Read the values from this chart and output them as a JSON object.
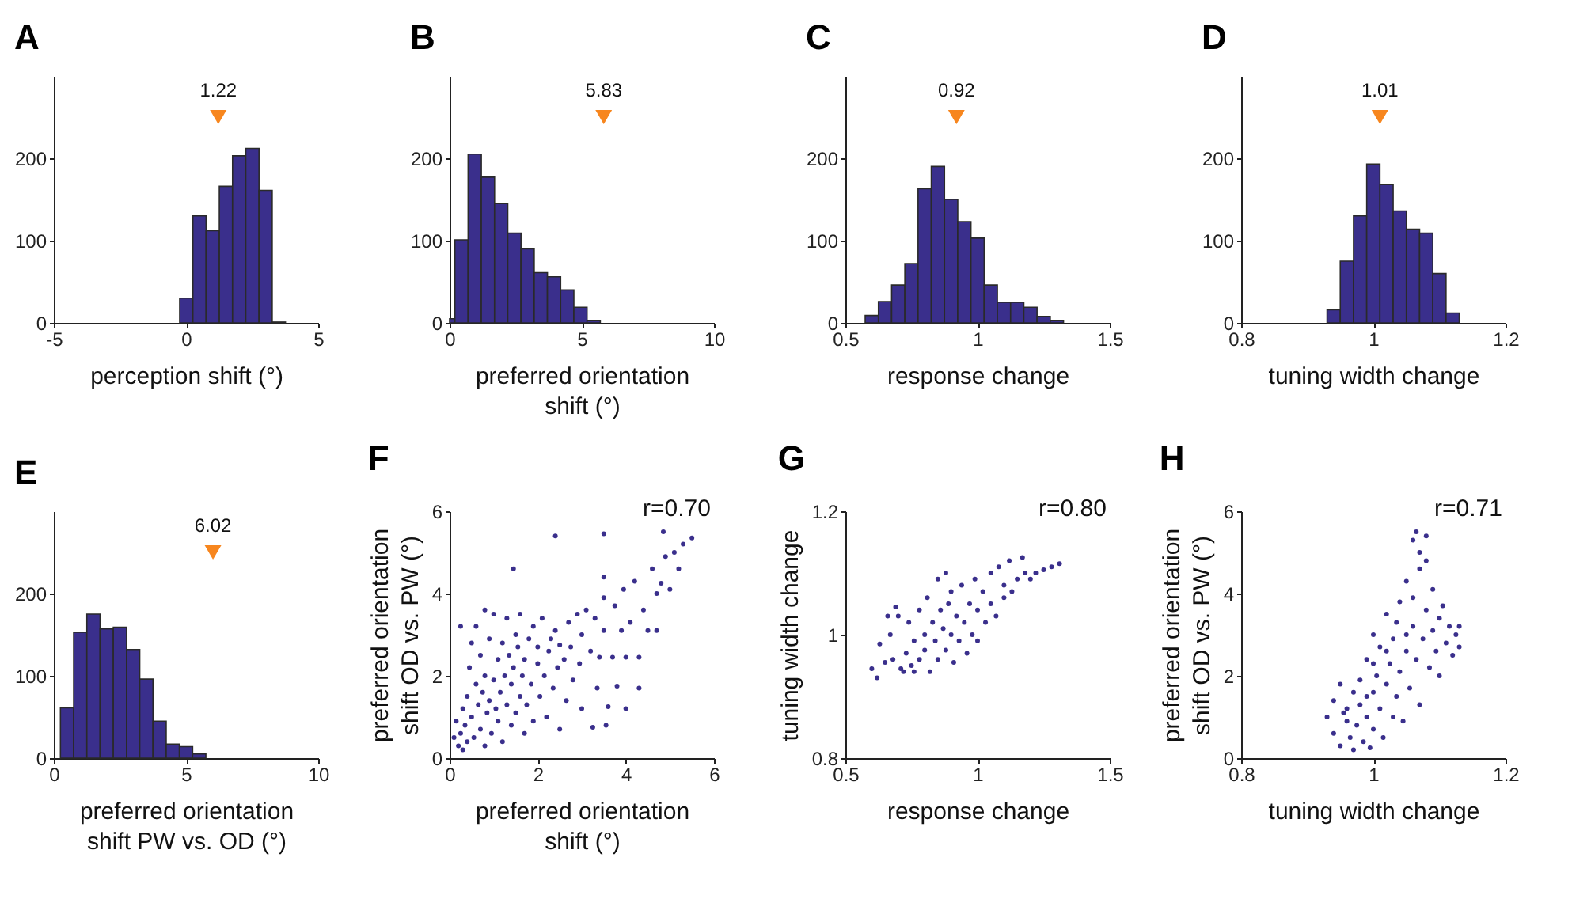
{
  "chart_data": [
    {
      "type": "histogram",
      "title": "A",
      "xlabel": "perception shift (°)",
      "color": "#3a2f8c",
      "xlim": [
        -5,
        5
      ],
      "xticks": [
        -5,
        0,
        5
      ],
      "ylim": [
        0,
        300
      ],
      "yticks": [
        0,
        100,
        200
      ],
      "bins": [
        -0.24,
        0.26,
        0.76,
        1.26,
        1.76,
        2.26,
        2.76,
        3.26,
        3.76
      ],
      "values": [
        30,
        130,
        112,
        166,
        203,
        212,
        161,
        1
      ],
      "annotations": [
        {
          "text": "1.22",
          "x": 1.22,
          "y": 250
        }
      ]
    },
    {
      "type": "histogram",
      "title": "B",
      "xlabel": "preferred orientation\nshift (°)",
      "color": "#3a2f8c",
      "xlim": [
        0,
        10
      ],
      "xticks": [
        0,
        5,
        10
      ],
      "ylim": [
        0,
        300
      ],
      "yticks": [
        0,
        100,
        200
      ],
      "bins": [
        0,
        0.2,
        0.7,
        1.2,
        1.7,
        2.2,
        2.7,
        3.2,
        3.7,
        4.2,
        4.7,
        5.2,
        5.7
      ],
      "values": [
        5,
        101,
        205,
        177,
        145,
        109,
        90,
        61,
        56,
        40,
        19,
        3
      ],
      "annotations": [
        {
          "text": "5.83",
          "x": 5.83,
          "y": 250
        }
      ]
    },
    {
      "type": "histogram",
      "title": "C",
      "xlabel": "response change",
      "color": "#3a2f8c",
      "xlim": [
        0.5,
        1.5
      ],
      "xticks": [
        0.5,
        1,
        1.5
      ],
      "ylim": [
        0,
        300
      ],
      "yticks": [
        0,
        100,
        200
      ],
      "bins": [
        0.575,
        0.625,
        0.675,
        0.725,
        0.775,
        0.825,
        0.875,
        0.925,
        0.975,
        1.025,
        1.075,
        1.125,
        1.175,
        1.225,
        1.275,
        1.325
      ],
      "values": [
        9,
        26,
        46,
        72,
        163,
        190,
        150,
        123,
        103,
        46,
        25,
        25,
        19,
        8,
        3
      ],
      "annotations": [
        {
          "text": "0.92",
          "x": 0.92,
          "y": 250
        }
      ]
    },
    {
      "type": "histogram",
      "title": "D",
      "xlabel": "tuning width change",
      "color": "#3a2f8c",
      "xlim": [
        0.8,
        1.2
      ],
      "xticks": [
        0.8,
        1,
        1.2
      ],
      "ylim": [
        0,
        300
      ],
      "yticks": [
        0,
        100,
        200
      ],
      "bins": [
        0.93,
        0.95,
        0.97,
        0.99,
        1.01,
        1.03,
        1.05,
        1.07,
        1.09,
        1.11,
        1.13
      ],
      "values": [
        16,
        75,
        130,
        193,
        168,
        136,
        114,
        109,
        60,
        12
      ],
      "annotations": [
        {
          "text": "1.01",
          "x": 1.01,
          "y": 250
        }
      ]
    },
    {
      "type": "histogram",
      "title": "E",
      "xlabel": "preferred orientation\nshift PW vs. OD (°)",
      "color": "#3a2f8c",
      "xlim": [
        0,
        10
      ],
      "xticks": [
        0,
        5,
        10
      ],
      "ylim": [
        0,
        300
      ],
      "yticks": [
        0,
        100,
        200
      ],
      "bins": [
        0.25,
        0.75,
        1.25,
        1.75,
        2.25,
        2.75,
        3.25,
        3.75,
        4.25,
        4.75,
        5.25,
        5.75
      ],
      "values": [
        61,
        153,
        175,
        157,
        159,
        132,
        96,
        45,
        17,
        14,
        5
      ],
      "annotations": [
        {
          "text": "6.02",
          "x": 6.02,
          "y": 250
        }
      ]
    },
    {
      "type": "scatter",
      "title": "F",
      "xlabel": "preferred orientation\nshift (°)",
      "ylabel": "preferred orientation\nshift OD vs. PW (°)",
      "color": "#3a2f8c",
      "marker": "circle",
      "xlim": [
        0,
        6
      ],
      "xticks": [
        0,
        2,
        4,
        6
      ],
      "ylim": [
        0,
        6
      ],
      "yticks": [
        0,
        2,
        4,
        6
      ],
      "annotations": [
        "r=0.70"
      ],
      "x": [
        0.1,
        0.15,
        0.2,
        0.25,
        0.3,
        0.3,
        0.35,
        0.4,
        0.4,
        0.45,
        0.5,
        0.5,
        0.55,
        0.6,
        0.6,
        0.65,
        0.7,
        0.7,
        0.75,
        0.8,
        0.8,
        0.85,
        0.9,
        0.9,
        0.95,
        1.0,
        1.0,
        1.05,
        1.1,
        1.1,
        1.15,
        1.2,
        1.2,
        1.25,
        1.3,
        1.3,
        1.35,
        1.4,
        1.4,
        1.45,
        1.5,
        1.5,
        1.55,
        1.6,
        1.6,
        1.65,
        1.7,
        1.7,
        1.75,
        1.8,
        1.85,
        1.9,
        1.9,
        2.0,
        2.0,
        2.05,
        2.1,
        2.15,
        2.2,
        2.25,
        2.3,
        2.35,
        2.4,
        2.45,
        2.5,
        2.5,
        2.6,
        2.65,
        2.7,
        2.75,
        2.8,
        2.9,
        2.95,
        3.0,
        3.0,
        3.1,
        3.2,
        3.25,
        3.3,
        3.35,
        3.4,
        3.5,
        3.5,
        3.55,
        3.6,
        3.7,
        3.75,
        3.8,
        3.9,
        3.95,
        4.0,
        4.0,
        4.1,
        4.2,
        4.3,
        4.3,
        4.4,
        4.5,
        4.6,
        4.7,
        4.7,
        4.8,
        4.9,
        5.0,
        5.1,
        5.2,
        5.3,
        5.5,
        2.4,
        3.5,
        1.45,
        4.85,
        3.5,
        0.25,
        0.8
      ],
      "values": [
        0.5,
        0.9,
        0.3,
        0.6,
        1.2,
        0.2,
        0.8,
        1.5,
        0.4,
        2.2,
        1.0,
        2.8,
        0.5,
        1.8,
        3.2,
        1.3,
        0.7,
        2.5,
        1.6,
        0.3,
        2.0,
        1.1,
        2.9,
        1.4,
        0.6,
        1.9,
        3.5,
        1.2,
        2.4,
        0.9,
        1.6,
        2.8,
        0.4,
        2.0,
        1.3,
        3.4,
        2.5,
        0.8,
        1.8,
        2.2,
        3.0,
        1.1,
        2.7,
        1.5,
        3.5,
        2.0,
        0.6,
        2.4,
        1.3,
        2.9,
        1.8,
        3.2,
        0.9,
        2.3,
        2.7,
        1.5,
        3.4,
        2.0,
        1.0,
        2.6,
        2.9,
        1.7,
        3.1,
        2.2,
        2.75,
        0.7,
        2.4,
        1.4,
        3.3,
        2.7,
        1.9,
        3.5,
        2.3,
        3.0,
        1.2,
        3.6,
        2.6,
        0.75,
        3.4,
        1.7,
        2.45,
        3.1,
        3.9,
        0.8,
        1.25,
        2.45,
        3.7,
        1.75,
        3.1,
        4.1,
        2.45,
        1.2,
        3.3,
        4.3,
        2.45,
        1.7,
        3.6,
        3.1,
        4.6,
        3.1,
        4.0,
        4.25,
        4.9,
        4.1,
        5.0,
        4.6,
        5.2,
        5.35,
        5.4,
        5.45,
        4.6,
        5.5,
        4.4,
        3.2,
        3.6
      ]
    },
    {
      "type": "scatter",
      "title": "G",
      "xlabel": "response change",
      "ylabel": "tuning width change",
      "color": "#3a2f8c",
      "marker": "circle",
      "xlim": [
        0.5,
        1.5
      ],
      "xticks": [
        0.5,
        1,
        1.5
      ],
      "ylim": [
        0.8,
        1.2
      ],
      "yticks": [
        0.8,
        1,
        1.2
      ],
      "annotations": [
        "r=0.80"
      ],
      "x": [
        0.6,
        0.62,
        0.63,
        0.65,
        0.67,
        0.68,
        0.7,
        0.71,
        0.73,
        0.74,
        0.75,
        0.76,
        0.78,
        0.78,
        0.8,
        0.8,
        0.81,
        0.82,
        0.83,
        0.84,
        0.85,
        0.85,
        0.86,
        0.87,
        0.88,
        0.89,
        0.9,
        0.9,
        0.91,
        0.92,
        0.93,
        0.94,
        0.95,
        0.96,
        0.97,
        0.98,
        0.99,
        1.0,
        1.0,
        1.02,
        1.03,
        1.05,
        1.05,
        1.07,
        1.08,
        1.1,
        1.1,
        1.12,
        1.13,
        1.15,
        1.17,
        1.18,
        1.2,
        1.22,
        1.25,
        1.28,
        1.31,
        0.66,
        0.69,
        0.88,
        0.76,
        0.72
      ],
      "values": [
        0.945,
        0.93,
        0.985,
        0.955,
        1.0,
        0.96,
        1.03,
        0.945,
        0.97,
        1.02,
        0.95,
        0.99,
        1.04,
        0.96,
        1.0,
        0.975,
        1.06,
        0.94,
        1.02,
        0.99,
        1.09,
        0.96,
        1.04,
        1.01,
        0.975,
        1.05,
        1.0,
        1.07,
        0.955,
        1.03,
        0.99,
        1.08,
        1.02,
        0.97,
        1.05,
        1.0,
        1.09,
        1.04,
        0.99,
        1.07,
        1.02,
        1.1,
        1.05,
        1.03,
        1.11,
        1.06,
        1.08,
        1.12,
        1.07,
        1.09,
        1.125,
        1.1,
        1.09,
        1.1,
        1.105,
        1.11,
        1.115,
        1.03,
        1.045,
        1.1,
        0.94,
        0.94
      ]
    },
    {
      "type": "scatter",
      "title": "H",
      "xlabel": "tuning width change",
      "ylabel": "preferred orientation\nshift OD vs. PW (°)",
      "color": "#3a2f8c",
      "marker": "circle",
      "xlim": [
        0.8,
        1.2
      ],
      "xticks": [
        0.8,
        1,
        1.2
      ],
      "ylim": [
        0,
        6
      ],
      "yticks": [
        0,
        2,
        4,
        6
      ],
      "annotations": [
        "r=0.71"
      ],
      "x": [
        0.93,
        0.94,
        0.94,
        0.95,
        0.95,
        0.96,
        0.96,
        0.965,
        0.97,
        0.97,
        0.975,
        0.98,
        0.98,
        0.985,
        0.99,
        0.99,
        0.995,
        1.0,
        1.0,
        1.0,
        1.005,
        1.01,
        1.01,
        1.015,
        1.02,
        1.02,
        1.025,
        1.03,
        1.03,
        1.035,
        1.04,
        1.04,
        1.045,
        1.05,
        1.05,
        1.055,
        1.06,
        1.06,
        1.065,
        1.07,
        1.07,
        1.075,
        1.08,
        1.08,
        1.085,
        1.09,
        1.09,
        1.095,
        1.1,
        1.1,
        1.105,
        1.11,
        1.115,
        1.12,
        1.125,
        1.13,
        1.13,
        1.07,
        1.065,
        1.05,
        1.02,
        0.955,
        0.99,
        1.0,
        1.035,
        1.06,
        1.08
      ],
      "values": [
        1.0,
        0.6,
        1.4,
        0.3,
        1.8,
        0.9,
        1.2,
        0.5,
        1.6,
        0.2,
        0.8,
        1.3,
        1.9,
        0.4,
        1.0,
        2.4,
        0.25,
        1.6,
        0.7,
        3.0,
        2.0,
        1.2,
        2.7,
        0.5,
        1.8,
        3.5,
        2.3,
        1.0,
        2.9,
        1.5,
        3.8,
        2.1,
        0.9,
        2.6,
        4.3,
        1.7,
        3.2,
        5.3,
        2.4,
        4.6,
        1.3,
        2.9,
        3.6,
        5.4,
        2.2,
        4.1,
        3.1,
        2.6,
        3.4,
        2.0,
        3.7,
        2.8,
        3.2,
        2.5,
        3.0,
        3.2,
        2.7,
        5.0,
        5.5,
        3.0,
        2.6,
        1.1,
        1.5,
        2.3,
        3.3,
        3.9,
        4.8
      ]
    }
  ]
}
